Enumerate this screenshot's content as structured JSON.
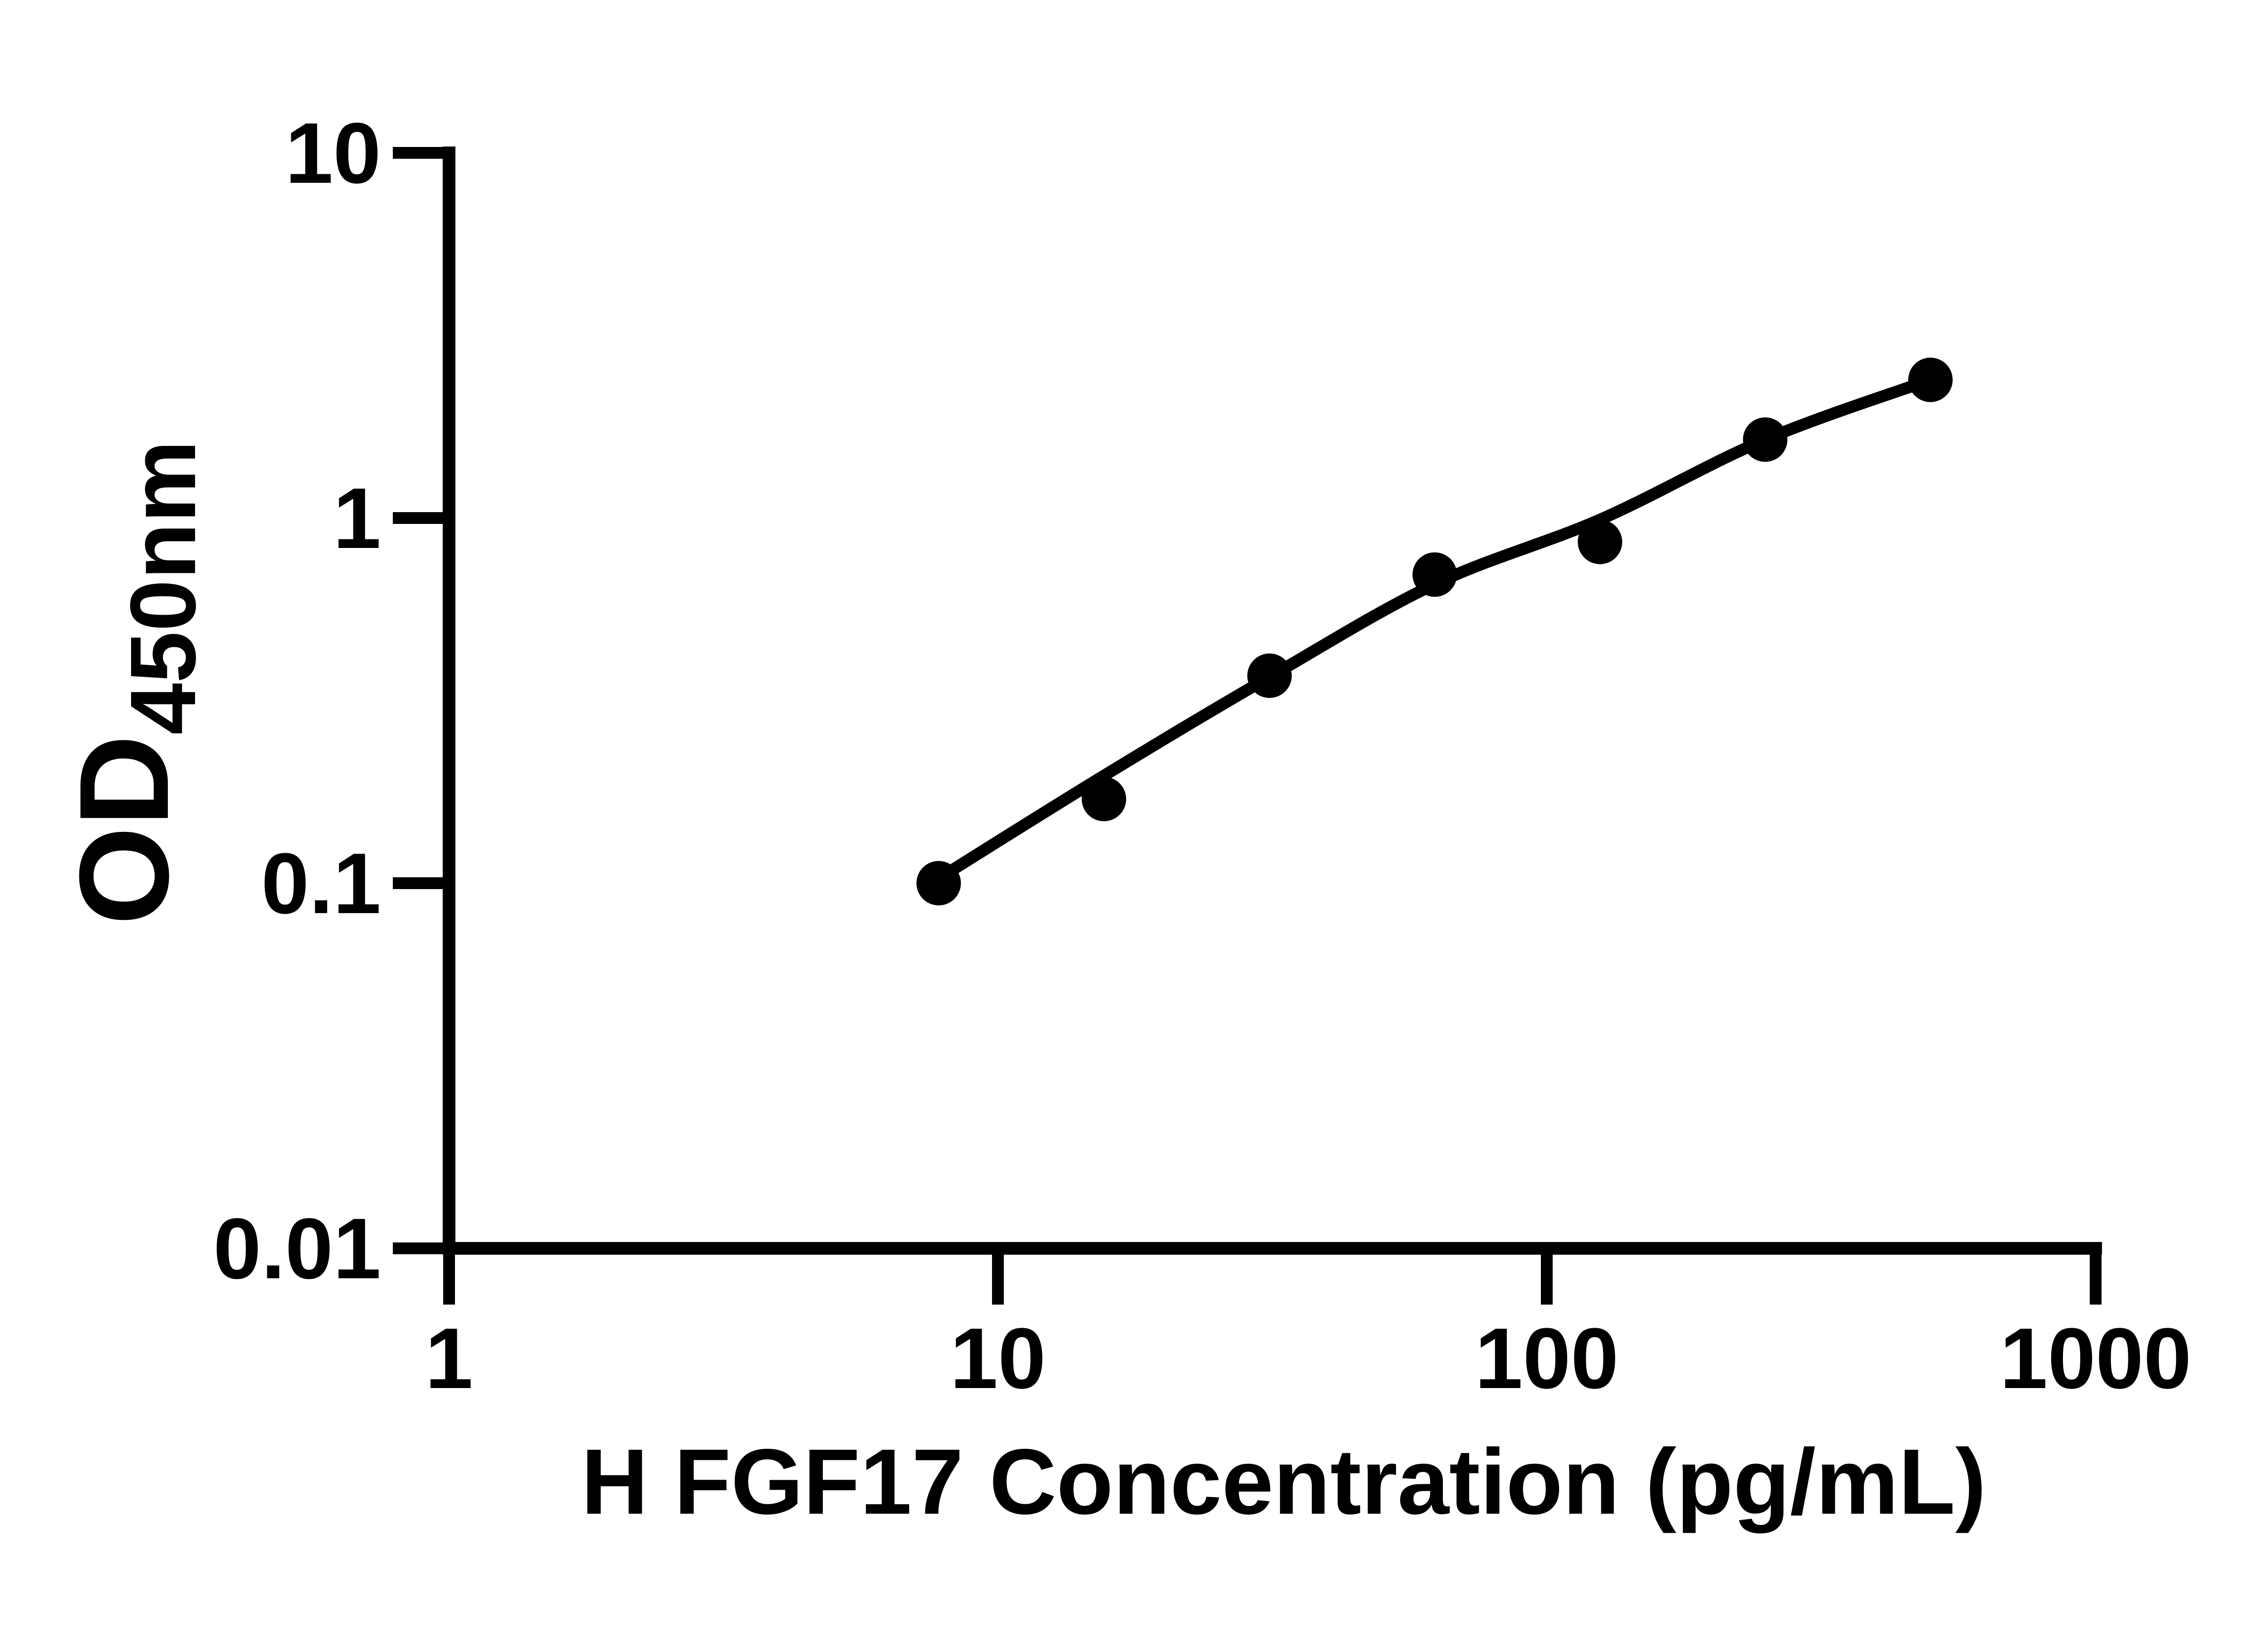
{
  "figure": {
    "background_color": "#ffffff",
    "ink_color": "#000000"
  },
  "chart_data": {
    "type": "scatter",
    "title": "",
    "xlabel": "H FGF17 Concentration (pg/mL)",
    "ylabel_main": "OD",
    "ylabel_sub": "450nm",
    "x_scale": "log",
    "y_scale": "log",
    "xlim": [
      1,
      1000
    ],
    "ylim": [
      0.01,
      10
    ],
    "x_tick_labels": [
      "1",
      "10",
      "100",
      "1000"
    ],
    "x_tick_values": [
      1,
      10,
      100,
      1000
    ],
    "y_tick_labels": [
      "10",
      "1",
      "0.1",
      "0.01"
    ],
    "y_tick_values": [
      10,
      1,
      0.1,
      0.01
    ],
    "grid": false,
    "legend": "none",
    "series": [
      {
        "name": "standard-curve",
        "marker": "filled-circle",
        "marker_color": "#000000",
        "line_color": "#000000",
        "points": [
          {
            "x": 7.8,
            "y": 0.1
          },
          {
            "x": 15.6,
            "y": 0.17
          },
          {
            "x": 31.25,
            "y": 0.37
          },
          {
            "x": 62.5,
            "y": 0.7
          },
          {
            "x": 125,
            "y": 0.86
          },
          {
            "x": 250,
            "y": 1.64
          },
          {
            "x": 500,
            "y": 2.39
          }
        ],
        "fit_curve_points": [
          {
            "x": 7.8,
            "y": 0.103
          },
          {
            "x": 15.6,
            "y": 0.197
          },
          {
            "x": 31.25,
            "y": 0.367
          },
          {
            "x": 62.5,
            "y": 0.659
          },
          {
            "x": 125,
            "y": 0.99
          },
          {
            "x": 250,
            "y": 1.64
          },
          {
            "x": 500,
            "y": 2.39
          }
        ]
      }
    ]
  }
}
